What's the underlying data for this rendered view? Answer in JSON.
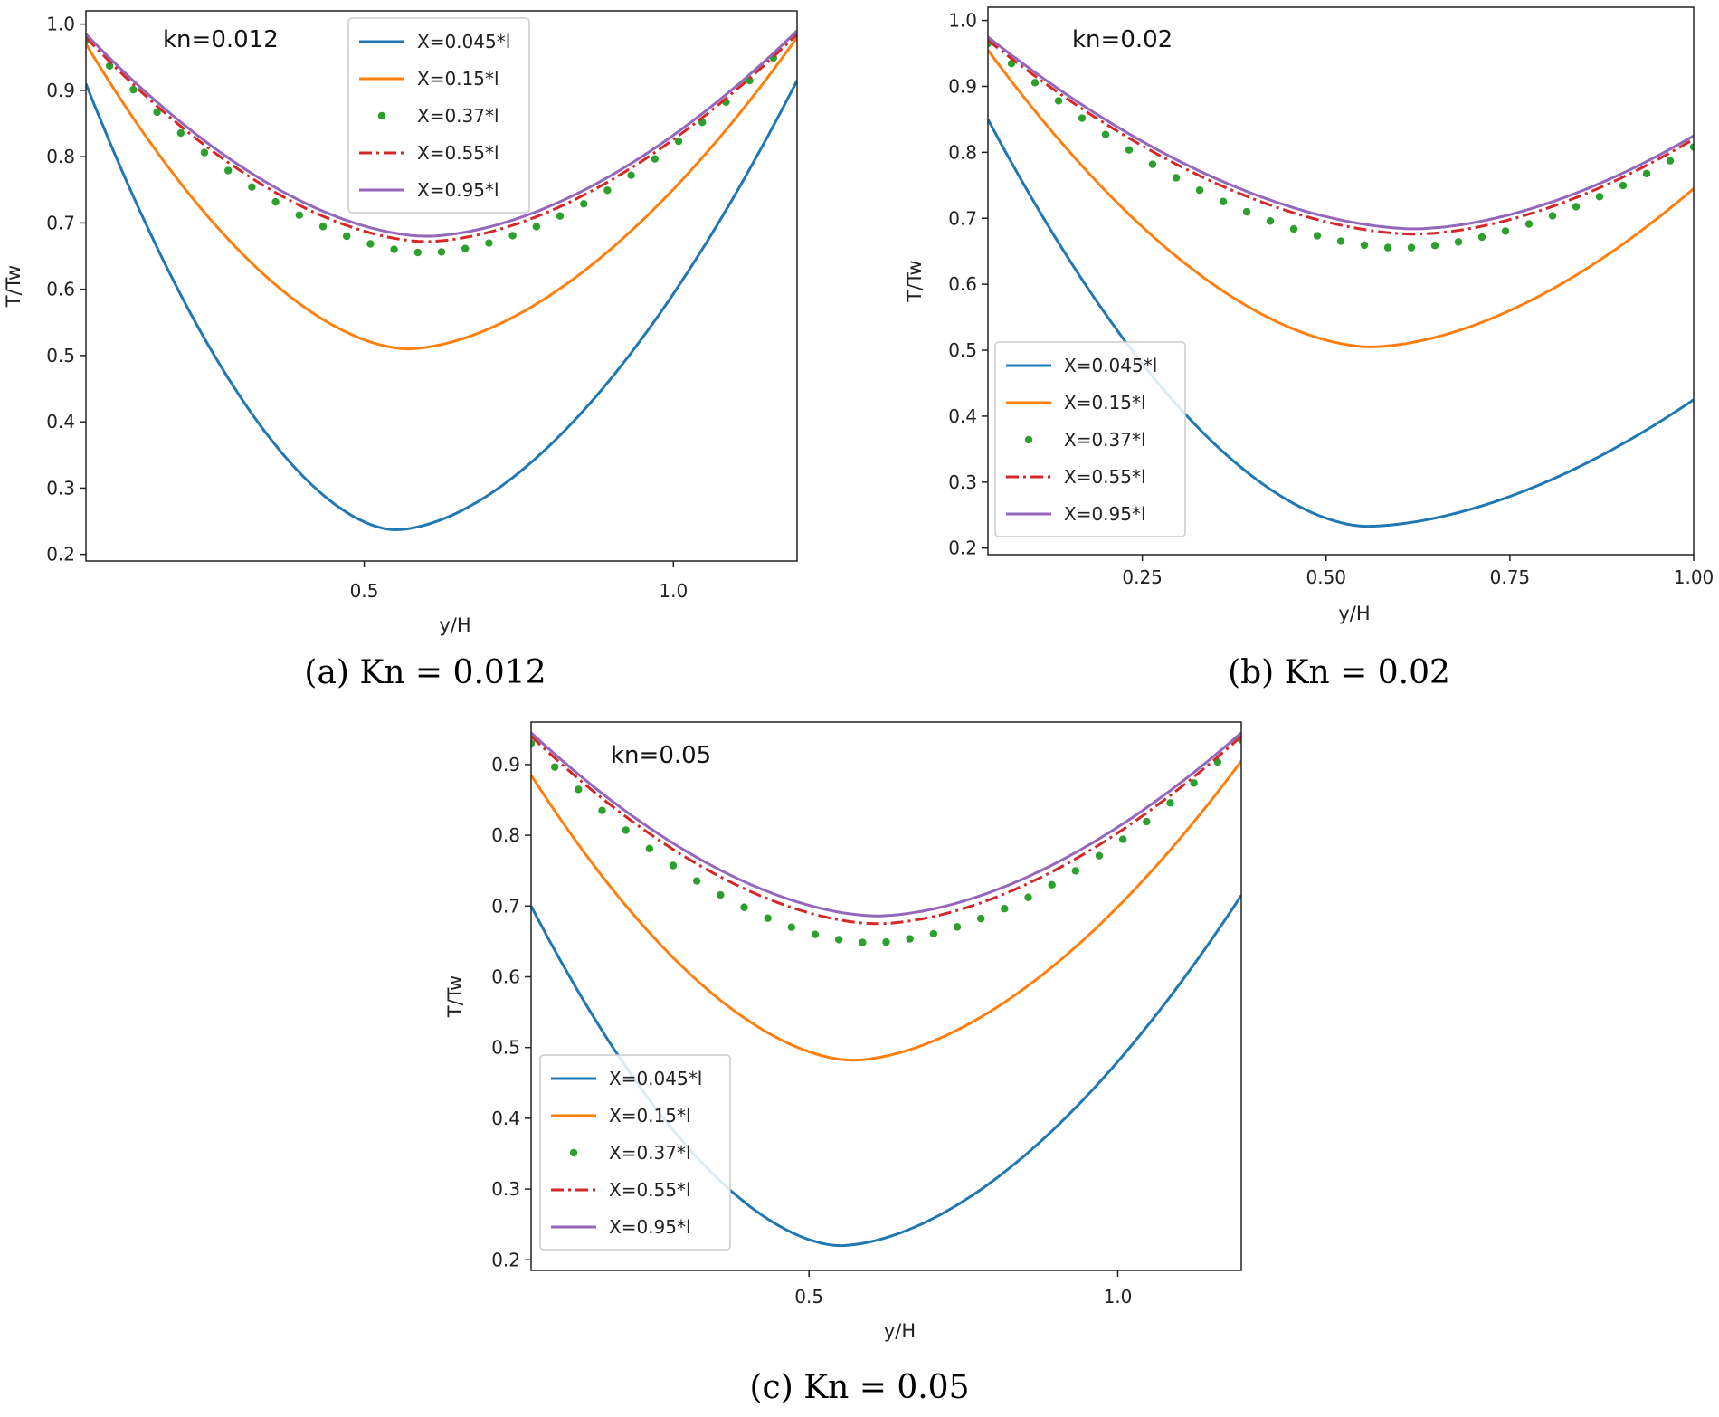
{
  "chart_data": [
    {
      "type": "line",
      "caption": "(a)  Kn = 0.012",
      "annotation": "kn=0.012",
      "xlabel": "y/H",
      "ylabel": "T/Tw",
      "xlim": [
        0.05,
        1.2
      ],
      "ylim": [
        0.19,
        1.02
      ],
      "xticks": [
        "0.5",
        "1.0"
      ],
      "yticks": [
        "0.2",
        "0.3",
        "0.4",
        "0.5",
        "0.6",
        "0.7",
        "0.8",
        "0.9",
        "1.0"
      ],
      "legend_position": "top-center",
      "series": [
        {
          "name": "X=0.045*l",
          "color": "#1f77b4",
          "style": "solid",
          "min_x": 0.55,
          "left": 0.91,
          "mid": 0.237,
          "right": 0.915
        },
        {
          "name": "X=0.15*l",
          "color": "#ff7f0e",
          "style": "solid",
          "min_x": 0.57,
          "left": 0.97,
          "mid": 0.51,
          "right": 0.98
        },
        {
          "name": "X=0.37*l",
          "color": "#2ca02c",
          "style": "dots",
          "min_x": 0.6,
          "left": 0.975,
          "mid": 0.655,
          "right": 0.985
        },
        {
          "name": "X=0.55*l",
          "color": "#d62728",
          "style": "dashdot",
          "min_x": 0.6,
          "left": 0.98,
          "mid": 0.672,
          "right": 0.985
        },
        {
          "name": "X=0.95*l",
          "color": "#9467bd",
          "style": "solid",
          "min_x": 0.6,
          "left": 0.985,
          "mid": 0.68,
          "right": 0.99
        }
      ]
    },
    {
      "type": "line",
      "caption": "(b)  Kn = 0.02",
      "annotation": "kn=0.02",
      "xlabel": "y/H",
      "ylabel": "T/Tw",
      "xlim": [
        0.04,
        1.0
      ],
      "ylim": [
        0.19,
        1.02
      ],
      "xticks": [
        "0.25",
        "0.50",
        "0.75",
        "1.00"
      ],
      "yticks": [
        "0.2",
        "0.3",
        "0.4",
        "0.5",
        "0.6",
        "0.7",
        "0.8",
        "0.9",
        "1.0"
      ],
      "legend_position": "lower-left",
      "series": [
        {
          "name": "X=0.045*l",
          "color": "#1f77b4",
          "style": "solid",
          "min_x": 0.555,
          "left": 0.85,
          "mid": 0.233,
          "right": 0.425
        },
        {
          "name": "X=0.15*l",
          "color": "#ff7f0e",
          "style": "solid",
          "min_x": 0.56,
          "left": 0.955,
          "mid": 0.505,
          "right": 0.745
        },
        {
          "name": "X=0.37*l",
          "color": "#2ca02c",
          "style": "dots",
          "min_x": 0.6,
          "left": 0.965,
          "mid": 0.655,
          "right": 0.808
        },
        {
          "name": "X=0.55*l",
          "color": "#d62728",
          "style": "dashdot",
          "min_x": 0.62,
          "left": 0.97,
          "mid": 0.676,
          "right": 0.82
        },
        {
          "name": "X=0.95*l",
          "color": "#9467bd",
          "style": "solid",
          "min_x": 0.62,
          "left": 0.975,
          "mid": 0.684,
          "right": 0.825
        }
      ]
    },
    {
      "type": "line",
      "caption": "(c)  Kn = 0.05",
      "annotation": "kn=0.05",
      "xlabel": "y/H",
      "ylabel": "T/Tw",
      "xlim": [
        0.05,
        1.2
      ],
      "ylim": [
        0.185,
        0.96
      ],
      "xticks": [
        "0.5",
        "1.0"
      ],
      "yticks": [
        "0.2",
        "0.3",
        "0.4",
        "0.5",
        "0.6",
        "0.7",
        "0.8",
        "0.9"
      ],
      "legend_position": "lower-left",
      "series": [
        {
          "name": "X=0.045*l",
          "color": "#1f77b4",
          "style": "solid",
          "min_x": 0.55,
          "left": 0.7,
          "mid": 0.22,
          "right": 0.715
        },
        {
          "name": "X=0.15*l",
          "color": "#ff7f0e",
          "style": "solid",
          "min_x": 0.57,
          "left": 0.885,
          "mid": 0.482,
          "right": 0.905
        },
        {
          "name": "X=0.37*l",
          "color": "#2ca02c",
          "style": "dots",
          "min_x": 0.6,
          "left": 0.93,
          "mid": 0.648,
          "right": 0.935
        },
        {
          "name": "X=0.55*l",
          "color": "#d62728",
          "style": "dashdot",
          "min_x": 0.61,
          "left": 0.94,
          "mid": 0.675,
          "right": 0.94
        },
        {
          "name": "X=0.95*l",
          "color": "#9467bd",
          "style": "solid",
          "min_x": 0.61,
          "left": 0.945,
          "mid": 0.686,
          "right": 0.945
        }
      ]
    }
  ]
}
